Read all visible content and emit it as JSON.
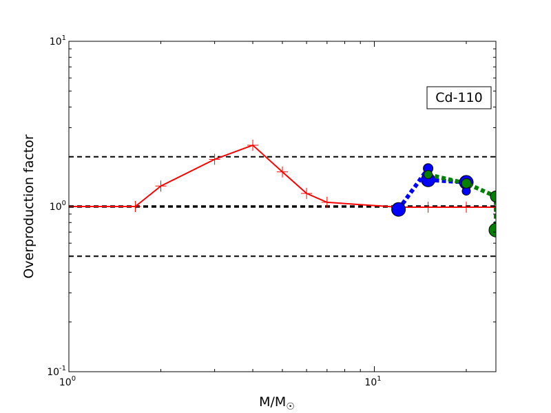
{
  "chart_data": {
    "type": "line",
    "x_scale": "log",
    "y_scale": "log",
    "xlim": [
      1,
      25
    ],
    "ylim": [
      0.1,
      10
    ],
    "grid": false,
    "xlabel": "M/M",
    "xlabel_subscript_symbol": "☉",
    "ylabel": "Overproduction factor",
    "x_ticks": [
      {
        "value": 1,
        "base": "10",
        "exp": "0"
      },
      {
        "value": 10,
        "base": "10",
        "exp": "1"
      }
    ],
    "y_ticks": [
      {
        "value": 0.1,
        "base": "10",
        "exp": "-1"
      },
      {
        "value": 1,
        "base": "10",
        "exp": "0"
      },
      {
        "value": 10,
        "base": "10",
        "exp": "1"
      }
    ],
    "annotation": "Cd-110",
    "reference_lines": [
      {
        "y": 2.0,
        "style": "dashed",
        "color": "#000000"
      },
      {
        "y": 1.0,
        "style": "dashed-thick",
        "color": "#000000"
      },
      {
        "y": 0.5,
        "style": "dashed",
        "color": "#000000"
      }
    ],
    "series": [
      {
        "color": "#ff0000",
        "line_style": "solid",
        "marker": "plus",
        "x": [
          1.0,
          1.65,
          2.0,
          3.0,
          4.0,
          5.0,
          6.0,
          7.0,
          12.0,
          15.0,
          20.0,
          25.0
        ],
        "y": [
          1.0,
          1.0,
          1.33,
          1.93,
          2.35,
          1.62,
          1.2,
          1.06,
          0.99,
          0.99,
          0.99,
          0.99
        ],
        "markers_x": [
          1.0,
          1.65,
          2.0,
          3.0,
          4.0,
          5.0,
          6.0,
          7.0,
          15.0,
          20.0
        ],
        "markers_y": [
          1.0,
          1.0,
          1.33,
          1.93,
          2.35,
          1.62,
          1.2,
          1.06,
          0.99,
          0.99
        ]
      },
      {
        "color": "#0000ff",
        "line_style": "dotted-thick",
        "marker": "circle",
        "x": [
          12.0,
          15.0,
          15.0,
          20.0,
          20.0
        ],
        "y": [
          0.96,
          1.7,
          1.45,
          1.4,
          1.24
        ],
        "marker_sizes": [
          10,
          7,
          10,
          10,
          6
        ]
      },
      {
        "color": "#008000",
        "line_style": "dotted-thick",
        "marker": "circle",
        "x": [
          15.0,
          20.0,
          25.0,
          25.0
        ],
        "y": [
          1.56,
          1.38,
          1.15,
          0.72
        ],
        "marker_sizes": [
          6,
          7,
          8,
          10
        ]
      }
    ]
  }
}
